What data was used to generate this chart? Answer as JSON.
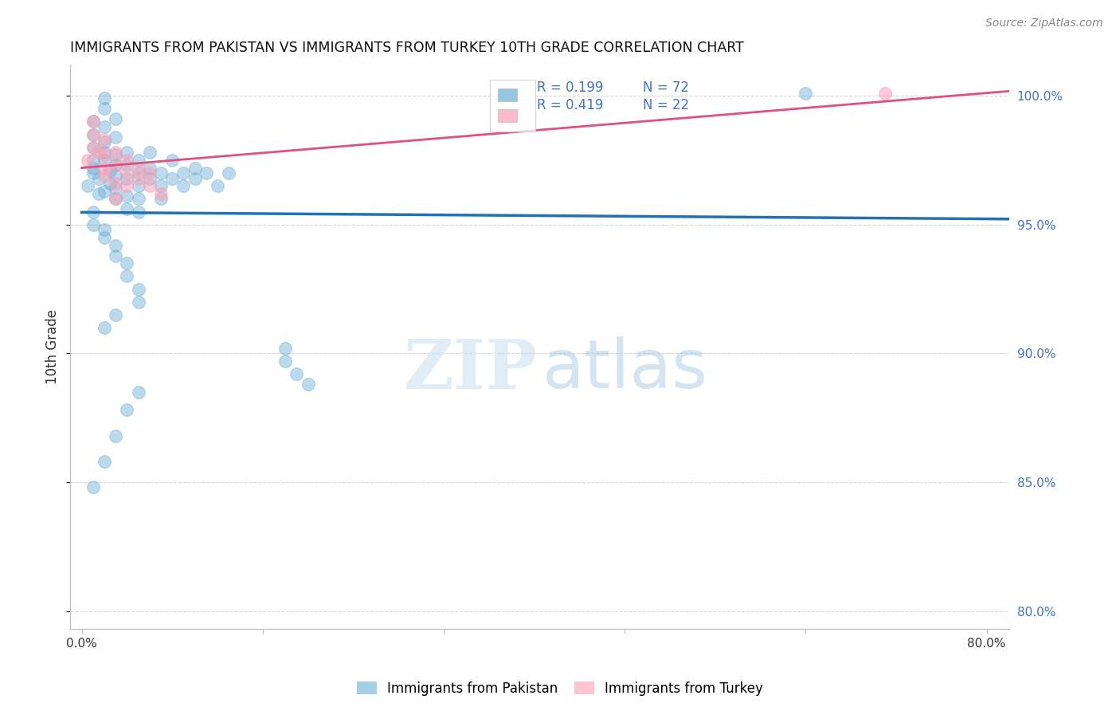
{
  "title": "IMMIGRANTS FROM PAKISTAN VS IMMIGRANTS FROM TURKEY 10TH GRADE CORRELATION CHART",
  "source": "Source: ZipAtlas.com",
  "ylabel": "10th Grade",
  "legend_blue_label": "Immigrants from Pakistan",
  "legend_pink_label": "Immigrants from Turkey",
  "blue_R": "R = 0.199",
  "blue_N": "N = 72",
  "pink_R": "R = 0.419",
  "pink_N": "N = 22",
  "blue_color": "#6baed6",
  "pink_color": "#fa9fb5",
  "blue_line_color": "#2171b5",
  "pink_line_color": "#e05080",
  "background_color": "#ffffff",
  "pakistan_x": [
    0.0005,
    0.001,
    0.001,
    0.001,
    0.001,
    0.001,
    0.001,
    0.0015,
    0.0015,
    0.002,
    0.002,
    0.002,
    0.002,
    0.002,
    0.002,
    0.002,
    0.0025,
    0.0025,
    0.003,
    0.003,
    0.003,
    0.003,
    0.003,
    0.003,
    0.003,
    0.004,
    0.004,
    0.004,
    0.004,
    0.004,
    0.005,
    0.005,
    0.005,
    0.005,
    0.005,
    0.006,
    0.006,
    0.006,
    0.007,
    0.007,
    0.007,
    0.008,
    0.008,
    0.009,
    0.009,
    0.01,
    0.01,
    0.011,
    0.012,
    0.013,
    0.001,
    0.001,
    0.002,
    0.002,
    0.003,
    0.003,
    0.004,
    0.004,
    0.005,
    0.005,
    0.018,
    0.018,
    0.019,
    0.02,
    0.064,
    0.003,
    0.002,
    0.001,
    0.002,
    0.003,
    0.004,
    0.005
  ],
  "pakistan_y": [
    0.965,
    0.97,
    0.975,
    0.98,
    0.985,
    0.99,
    0.972,
    0.968,
    0.962,
    0.975,
    0.978,
    0.982,
    0.988,
    0.995,
    0.999,
    0.963,
    0.971,
    0.966,
    0.973,
    0.969,
    0.964,
    0.96,
    0.977,
    0.984,
    0.991,
    0.968,
    0.973,
    0.978,
    0.961,
    0.956,
    0.97,
    0.965,
    0.96,
    0.975,
    0.955,
    0.968,
    0.972,
    0.978,
    0.965,
    0.97,
    0.96,
    0.968,
    0.975,
    0.97,
    0.965,
    0.972,
    0.968,
    0.97,
    0.965,
    0.97,
    0.955,
    0.95,
    0.948,
    0.945,
    0.942,
    0.938,
    0.935,
    0.93,
    0.925,
    0.92,
    0.902,
    0.897,
    0.892,
    0.888,
    1.001,
    0.915,
    0.91,
    0.848,
    0.858,
    0.868,
    0.878,
    0.885
  ],
  "turkey_x": [
    0.0005,
    0.001,
    0.001,
    0.001,
    0.0015,
    0.002,
    0.002,
    0.002,
    0.002,
    0.003,
    0.003,
    0.003,
    0.003,
    0.004,
    0.004,
    0.004,
    0.005,
    0.005,
    0.006,
    0.006,
    0.007,
    0.071
  ],
  "turkey_y": [
    0.975,
    0.98,
    0.985,
    0.99,
    0.978,
    0.972,
    0.977,
    0.983,
    0.969,
    0.973,
    0.978,
    0.966,
    0.96,
    0.97,
    0.975,
    0.965,
    0.968,
    0.972,
    0.965,
    0.97,
    0.962,
    1.001
  ],
  "xlim_min": -0.001,
  "xlim_max": 0.082,
  "ylim_min": 0.793,
  "ylim_max": 1.012
}
